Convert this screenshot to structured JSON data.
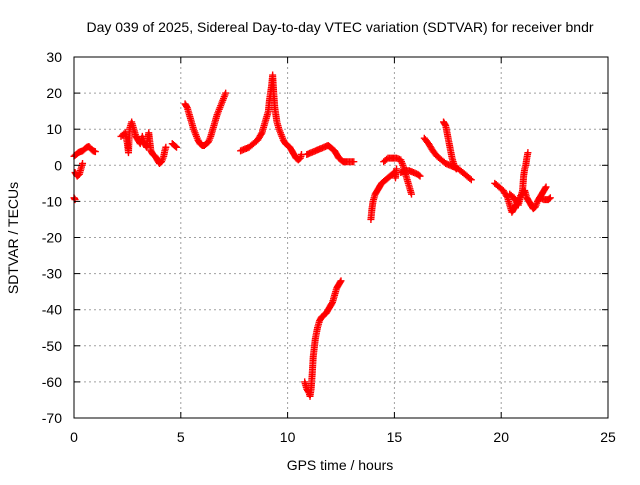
{
  "chart_data": {
    "type": "scatter",
    "title": "Day 039 of 2025, Sidereal Day-to-day VTEC variation (SDTVAR) for receiver bndr",
    "xlabel": "GPS time / hours",
    "ylabel": "SDTVAR / TECUs",
    "xlim": [
      0,
      25
    ],
    "ylim": [
      -70,
      30
    ],
    "xticks": [
      0,
      5,
      10,
      15,
      20,
      25
    ],
    "yticks": [
      -70,
      -60,
      -50,
      -40,
      -30,
      -20,
      -10,
      0,
      10,
      20,
      30
    ],
    "grid": true,
    "legend": "none",
    "marker": "plus",
    "color": "#ff0000",
    "series": [
      {
        "segments": [
          [
            [
              0.0,
              -9
            ],
            [
              0.05,
              -9.5
            ]
          ],
          [
            [
              0.0,
              2.5
            ],
            [
              0.1,
              3
            ],
            [
              0.2,
              3.5
            ],
            [
              0.3,
              3.8
            ],
            [
              0.4,
              4
            ],
            [
              0.5,
              4.5
            ],
            [
              0.6,
              5
            ],
            [
              0.7,
              5.2
            ],
            [
              0.8,
              4.5
            ],
            [
              0.9,
              4
            ],
            [
              1.0,
              3.8
            ]
          ],
          [
            [
              0.05,
              -2
            ],
            [
              0.15,
              -3
            ],
            [
              0.25,
              -2.5
            ],
            [
              0.3,
              -1.5
            ],
            [
              0.35,
              -0.5
            ],
            [
              0.4,
              0.5
            ]
          ],
          [
            [
              2.2,
              8
            ],
            [
              2.4,
              9
            ],
            [
              2.5,
              6
            ],
            [
              2.55,
              3.5
            ],
            [
              2.6,
              10
            ],
            [
              2.7,
              12
            ],
            [
              2.8,
              10
            ],
            [
              2.9,
              8
            ],
            [
              3.0,
              7
            ],
            [
              3.1,
              6
            ],
            [
              3.2,
              8
            ],
            [
              3.3,
              6
            ],
            [
              3.4,
              5
            ],
            [
              3.5,
              9
            ],
            [
              3.6,
              4
            ],
            [
              3.7,
              3
            ],
            [
              3.8,
              2.5
            ],
            [
              3.9,
              1.5
            ],
            [
              4.0,
              0.5
            ],
            [
              4.1,
              1
            ],
            [
              4.2,
              2.5
            ],
            [
              4.25,
              4
            ],
            [
              4.3,
              5
            ]
          ],
          [
            [
              4.6,
              6
            ],
            [
              4.7,
              5.5
            ],
            [
              4.8,
              5
            ]
          ],
          [
            [
              5.2,
              17
            ],
            [
              5.3,
              16
            ],
            [
              5.4,
              14
            ],
            [
              5.5,
              12
            ],
            [
              5.6,
              10
            ],
            [
              5.7,
              8.5
            ],
            [
              5.8,
              7
            ],
            [
              5.9,
              6
            ],
            [
              6.0,
              5.5
            ],
            [
              6.1,
              5.5
            ],
            [
              6.2,
              6
            ],
            [
              6.3,
              6.5
            ],
            [
              6.4,
              8
            ],
            [
              6.5,
              10
            ],
            [
              6.6,
              12
            ],
            [
              6.7,
              14
            ],
            [
              6.8,
              15.5
            ],
            [
              6.9,
              17
            ],
            [
              7.0,
              18.5
            ],
            [
              7.1,
              20
            ]
          ],
          [
            [
              7.8,
              4
            ],
            [
              8.0,
              4.5
            ],
            [
              8.2,
              5
            ],
            [
              8.4,
              6
            ],
            [
              8.6,
              7
            ],
            [
              8.8,
              9
            ],
            [
              8.9,
              11
            ],
            [
              9.0,
              13
            ],
            [
              9.1,
              15
            ],
            [
              9.15,
              18
            ],
            [
              9.2,
              20
            ],
            [
              9.25,
              22
            ],
            [
              9.3,
              25
            ],
            [
              9.35,
              20
            ],
            [
              9.4,
              16
            ],
            [
              9.5,
              12
            ],
            [
              9.6,
              10
            ],
            [
              9.7,
              8.5
            ],
            [
              9.8,
              7
            ],
            [
              9.9,
              6
            ],
            [
              10.0,
              5.5
            ],
            [
              10.1,
              5
            ],
            [
              10.2,
              4
            ],
            [
              10.3,
              3
            ],
            [
              10.4,
              2
            ],
            [
              10.5,
              1.5
            ],
            [
              10.6,
              2
            ],
            [
              10.65,
              3
            ]
          ],
          [
            [
              10.9,
              3
            ],
            [
              11.1,
              3.5
            ],
            [
              11.3,
              4
            ],
            [
              11.5,
              4.5
            ],
            [
              11.7,
              5
            ],
            [
              11.9,
              5.5
            ],
            [
              12.0,
              5
            ],
            [
              12.1,
              4.5
            ],
            [
              12.2,
              4
            ],
            [
              12.3,
              3
            ],
            [
              12.4,
              2
            ],
            [
              12.5,
              1.5
            ],
            [
              12.6,
              1
            ],
            [
              12.7,
              1
            ],
            [
              12.9,
              1
            ],
            [
              13.1,
              1
            ]
          ],
          [
            [
              10.8,
              -60
            ],
            [
              10.9,
              -62
            ],
            [
              11.0,
              -63
            ],
            [
              11.05,
              -64
            ],
            [
              11.1,
              -62
            ],
            [
              11.15,
              -58
            ],
            [
              11.2,
              -53
            ],
            [
              11.3,
              -48
            ],
            [
              11.4,
              -45
            ],
            [
              11.5,
              -43
            ],
            [
              11.6,
              -42
            ],
            [
              11.7,
              -41.5
            ],
            [
              11.8,
              -41
            ],
            [
              11.9,
              -40
            ],
            [
              12.0,
              -39
            ],
            [
              12.1,
              -38
            ],
            [
              12.2,
              -36
            ],
            [
              12.3,
              -34
            ],
            [
              12.4,
              -33
            ],
            [
              12.5,
              -32
            ]
          ],
          [
            [
              13.9,
              -15
            ],
            [
              13.95,
              -12
            ],
            [
              14.0,
              -10
            ],
            [
              14.1,
              -8
            ],
            [
              14.2,
              -7
            ],
            [
              14.3,
              -6
            ],
            [
              14.4,
              -5
            ],
            [
              14.5,
              -4.5
            ],
            [
              14.6,
              -4
            ],
            [
              14.7,
              -3.5
            ],
            [
              14.8,
              -3
            ],
            [
              14.9,
              -2.5
            ],
            [
              15.0,
              -2
            ],
            [
              15.05,
              -3.5
            ],
            [
              15.1,
              -1
            ]
          ],
          [
            [
              14.5,
              1
            ],
            [
              14.7,
              2
            ],
            [
              14.9,
              2
            ],
            [
              15.1,
              2
            ],
            [
              15.3,
              1.5
            ],
            [
              15.4,
              0
            ],
            [
              15.5,
              -2
            ],
            [
              15.6,
              -4
            ],
            [
              15.7,
              -6
            ],
            [
              15.8,
              -8
            ]
          ],
          [
            [
              15.3,
              -2
            ],
            [
              15.5,
              -1.5
            ],
            [
              15.7,
              -1.5
            ],
            [
              15.9,
              -2
            ],
            [
              16.1,
              -2.5
            ],
            [
              16.2,
              -3
            ]
          ],
          [
            [
              16.4,
              7.5
            ],
            [
              16.6,
              6
            ],
            [
              16.8,
              4
            ],
            [
              17.0,
              2.5
            ],
            [
              17.2,
              1.5
            ],
            [
              17.4,
              0.5
            ],
            [
              17.6,
              0
            ],
            [
              17.8,
              -0.5
            ],
            [
              18.0,
              -1
            ],
            [
              18.2,
              -2
            ],
            [
              18.4,
              -3
            ],
            [
              18.6,
              -4
            ]
          ],
          [
            [
              17.3,
              12
            ],
            [
              17.4,
              11
            ],
            [
              17.5,
              8
            ],
            [
              17.6,
              5
            ],
            [
              17.7,
              2
            ],
            [
              17.8,
              0
            ],
            [
              17.9,
              -1
            ]
          ],
          [
            [
              19.7,
              -5
            ],
            [
              19.9,
              -6
            ],
            [
              20.1,
              -7
            ],
            [
              20.3,
              -9
            ],
            [
              20.4,
              -11
            ],
            [
              20.5,
              -13
            ],
            [
              20.6,
              -12
            ],
            [
              20.7,
              -11
            ],
            [
              20.8,
              -10
            ],
            [
              20.9,
              -8.5
            ],
            [
              21.0,
              -8
            ],
            [
              21.1,
              -7
            ],
            [
              21.2,
              -9
            ],
            [
              21.3,
              -10
            ],
            [
              21.4,
              -11
            ],
            [
              21.5,
              -12
            ],
            [
              21.6,
              -11.5
            ],
            [
              21.7,
              -10
            ],
            [
              21.8,
              -9
            ],
            [
              21.9,
              -8
            ],
            [
              22.0,
              -7
            ],
            [
              22.1,
              -6
            ]
          ],
          [
            [
              20.4,
              -8
            ],
            [
              20.6,
              -9
            ],
            [
              20.8,
              -11
            ],
            [
              21.0,
              -7
            ],
            [
              21.05,
              -3
            ],
            [
              21.1,
              -1
            ],
            [
              21.15,
              0
            ],
            [
              21.2,
              2
            ],
            [
              21.25,
              3.5
            ]
          ],
          [
            [
              21.8,
              -9
            ],
            [
              22.0,
              -9.5
            ],
            [
              22.2,
              -9.5
            ],
            [
              22.3,
              -9
            ]
          ]
        ]
      }
    ]
  }
}
